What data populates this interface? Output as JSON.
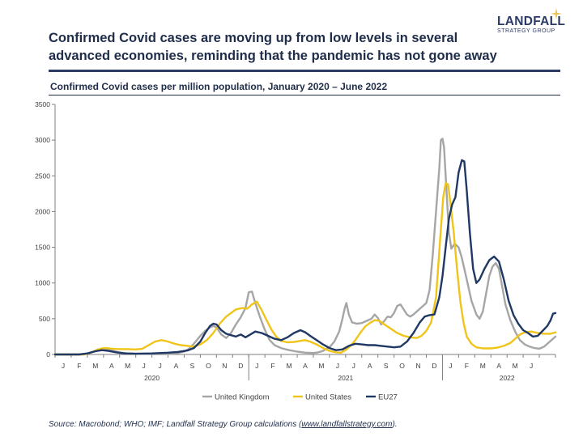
{
  "headline": "Confirmed Covid cases are moving up from low levels in several advanced economies, reminding that the pandemic has not gone away",
  "brand": {
    "name": "LANDFALL",
    "subtitle": "STRATEGY GROUP",
    "star_color": "#e8c25a",
    "color": "#2b3b66"
  },
  "source": {
    "prefix": "Source: Macrobond; WHO; IMF; Landfall Strategy Group calculations (",
    "link": "www.landfallstrategy.com",
    "suffix": ")."
  },
  "chart_data": {
    "type": "line",
    "title": "Confirmed Covid cases per million population, January 2020 – June 2022",
    "xlabel": "",
    "ylabel": "",
    "ylim": [
      0,
      3500
    ],
    "yticks": [
      0,
      500,
      1000,
      1500,
      2000,
      2500,
      3000,
      3500
    ],
    "x_unit": "months since January 2020",
    "xlim": [
      0,
      30
    ],
    "month_labels": [
      "J",
      "F",
      "M",
      "A",
      "M",
      "J",
      "J",
      "A",
      "S",
      "O",
      "N",
      "D",
      "J",
      "F",
      "M",
      "A",
      "M",
      "J",
      "J",
      "A",
      "S",
      "O",
      "N",
      "D",
      "J",
      "F",
      "M",
      "A",
      "M",
      "J"
    ],
    "year_labels": [
      {
        "label": "2020",
        "x": 6.0
      },
      {
        "label": "2021",
        "x": 18.0
      },
      {
        "label": "2022",
        "x": 28.0
      }
    ],
    "grid": false,
    "legend": "bottom",
    "series": [
      {
        "name": "United Kingdom",
        "color": "#a6a6a6",
        "points": [
          [
            0,
            0
          ],
          [
            1.5,
            0
          ],
          [
            2.0,
            10
          ],
          [
            2.5,
            45
          ],
          [
            2.8,
            65
          ],
          [
            3.1,
            70
          ],
          [
            3.5,
            55
          ],
          [
            4.0,
            30
          ],
          [
            4.5,
            15
          ],
          [
            5.0,
            10
          ],
          [
            6.0,
            5
          ],
          [
            7.0,
            5
          ],
          [
            7.5,
            15
          ],
          [
            8.0,
            40
          ],
          [
            8.3,
            80
          ],
          [
            8.6,
            150
          ],
          [
            9.0,
            260
          ],
          [
            9.3,
            330
          ],
          [
            9.6,
            380
          ],
          [
            9.8,
            400
          ],
          [
            10.0,
            380
          ],
          [
            10.3,
            280
          ],
          [
            10.6,
            230
          ],
          [
            10.9,
            300
          ],
          [
            11.2,
            420
          ],
          [
            11.5,
            520
          ],
          [
            11.8,
            650
          ],
          [
            12.0,
            870
          ],
          [
            12.2,
            880
          ],
          [
            12.4,
            720
          ],
          [
            12.7,
            520
          ],
          [
            13.0,
            340
          ],
          [
            13.3,
            200
          ],
          [
            13.6,
            130
          ],
          [
            14.0,
            90
          ],
          [
            14.5,
            60
          ],
          [
            15.0,
            40
          ],
          [
            15.5,
            25
          ],
          [
            16.0,
            20
          ],
          [
            16.3,
            30
          ],
          [
            16.6,
            50
          ],
          [
            17.0,
            100
          ],
          [
            17.3,
            180
          ],
          [
            17.6,
            320
          ],
          [
            17.8,
            500
          ],
          [
            17.95,
            650
          ],
          [
            18.05,
            720
          ],
          [
            18.2,
            560
          ],
          [
            18.4,
            450
          ],
          [
            18.7,
            430
          ],
          [
            19.0,
            440
          ],
          [
            19.3,
            470
          ],
          [
            19.6,
            500
          ],
          [
            19.8,
            560
          ],
          [
            20.0,
            510
          ],
          [
            20.2,
            420
          ],
          [
            20.4,
            470
          ],
          [
            20.6,
            530
          ],
          [
            20.8,
            520
          ],
          [
            21.0,
            580
          ],
          [
            21.2,
            680
          ],
          [
            21.4,
            700
          ],
          [
            21.6,
            630
          ],
          [
            21.8,
            560
          ],
          [
            22.0,
            530
          ],
          [
            22.2,
            560
          ],
          [
            22.5,
            620
          ],
          [
            22.8,
            680
          ],
          [
            23.0,
            720
          ],
          [
            23.2,
            900
          ],
          [
            23.4,
            1400
          ],
          [
            23.6,
            2000
          ],
          [
            23.8,
            2600
          ],
          [
            23.9,
            3000
          ],
          [
            24.0,
            3020
          ],
          [
            24.1,
            2900
          ],
          [
            24.25,
            2300
          ],
          [
            24.4,
            1700
          ],
          [
            24.55,
            1480
          ],
          [
            24.75,
            1550
          ],
          [
            25.0,
            1500
          ],
          [
            25.2,
            1350
          ],
          [
            25.5,
            1050
          ],
          [
            25.8,
            750
          ],
          [
            26.1,
            560
          ],
          [
            26.3,
            500
          ],
          [
            26.5,
            600
          ],
          [
            26.7,
            850
          ],
          [
            26.9,
            1100
          ],
          [
            27.1,
            1230
          ],
          [
            27.3,
            1280
          ],
          [
            27.5,
            1200
          ],
          [
            27.7,
            950
          ],
          [
            27.9,
            700
          ],
          [
            28.2,
            480
          ],
          [
            28.5,
            320
          ],
          [
            28.8,
            200
          ],
          [
            29.1,
            140
          ],
          [
            29.4,
            110
          ],
          [
            29.7,
            90
          ],
          [
            30.0,
            80
          ],
          [
            30.3,
            110
          ],
          [
            30.6,
            170
          ],
          [
            30.9,
            230
          ],
          [
            31.0,
            250
          ]
        ]
      },
      {
        "name": "United States",
        "color": "#f0c419",
        "points": [
          [
            0,
            0
          ],
          [
            1.8,
            0
          ],
          [
            2.2,
            25
          ],
          [
            2.6,
            65
          ],
          [
            2.9,
            85
          ],
          [
            3.2,
            90
          ],
          [
            3.5,
            80
          ],
          [
            4.0,
            75
          ],
          [
            4.5,
            75
          ],
          [
            5.0,
            70
          ],
          [
            5.4,
            80
          ],
          [
            5.8,
            130
          ],
          [
            6.2,
            180
          ],
          [
            6.6,
            200
          ],
          [
            7.0,
            180
          ],
          [
            7.4,
            150
          ],
          [
            7.8,
            130
          ],
          [
            8.2,
            120
          ],
          [
            8.6,
            110
          ],
          [
            9.0,
            140
          ],
          [
            9.4,
            200
          ],
          [
            9.8,
            300
          ],
          [
            10.2,
            430
          ],
          [
            10.6,
            530
          ],
          [
            10.9,
            580
          ],
          [
            11.2,
            630
          ],
          [
            11.6,
            650
          ],
          [
            11.9,
            640
          ],
          [
            12.2,
            700
          ],
          [
            12.5,
            740
          ],
          [
            12.8,
            620
          ],
          [
            13.1,
            480
          ],
          [
            13.4,
            350
          ],
          [
            13.7,
            250
          ],
          [
            14.0,
            190
          ],
          [
            14.4,
            170
          ],
          [
            14.8,
            175
          ],
          [
            15.2,
            190
          ],
          [
            15.5,
            200
          ],
          [
            15.8,
            180
          ],
          [
            16.2,
            140
          ],
          [
            16.6,
            90
          ],
          [
            17.0,
            50
          ],
          [
            17.4,
            30
          ],
          [
            17.7,
            25
          ],
          [
            18.0,
            60
          ],
          [
            18.3,
            120
          ],
          [
            18.6,
            200
          ],
          [
            18.9,
            300
          ],
          [
            19.2,
            390
          ],
          [
            19.5,
            440
          ],
          [
            19.8,
            480
          ],
          [
            20.1,
            470
          ],
          [
            20.4,
            420
          ],
          [
            20.8,
            360
          ],
          [
            21.2,
            300
          ],
          [
            21.6,
            260
          ],
          [
            22.0,
            240
          ],
          [
            22.4,
            230
          ],
          [
            22.7,
            260
          ],
          [
            23.0,
            330
          ],
          [
            23.3,
            450
          ],
          [
            23.6,
            800
          ],
          [
            23.85,
            1600
          ],
          [
            24.05,
            2200
          ],
          [
            24.2,
            2400
          ],
          [
            24.35,
            2380
          ],
          [
            24.5,
            2100
          ],
          [
            24.7,
            1700
          ],
          [
            24.9,
            1200
          ],
          [
            25.1,
            750
          ],
          [
            25.3,
            450
          ],
          [
            25.5,
            250
          ],
          [
            25.8,
            150
          ],
          [
            26.1,
            100
          ],
          [
            26.5,
            85
          ],
          [
            27.0,
            85
          ],
          [
            27.4,
            95
          ],
          [
            27.8,
            120
          ],
          [
            28.2,
            160
          ],
          [
            28.5,
            220
          ],
          [
            28.8,
            280
          ],
          [
            29.1,
            310
          ],
          [
            29.5,
            320
          ],
          [
            29.9,
            300
          ],
          [
            30.3,
            290
          ],
          [
            30.7,
            290
          ],
          [
            31.0,
            310
          ]
        ]
      },
      {
        "name": "EU27",
        "color": "#1f3864",
        "points": [
          [
            0,
            0
          ],
          [
            1.5,
            0
          ],
          [
            2.0,
            15
          ],
          [
            2.5,
            45
          ],
          [
            2.9,
            60
          ],
          [
            3.3,
            50
          ],
          [
            3.8,
            30
          ],
          [
            4.3,
            15
          ],
          [
            5.0,
            10
          ],
          [
            6.0,
            15
          ],
          [
            7.0,
            25
          ],
          [
            7.6,
            35
          ],
          [
            8.2,
            55
          ],
          [
            8.6,
            90
          ],
          [
            9.0,
            180
          ],
          [
            9.3,
            300
          ],
          [
            9.6,
            400
          ],
          [
            9.8,
            430
          ],
          [
            10.0,
            420
          ],
          [
            10.3,
            340
          ],
          [
            10.6,
            290
          ],
          [
            10.9,
            270
          ],
          [
            11.2,
            250
          ],
          [
            11.5,
            280
          ],
          [
            11.8,
            240
          ],
          [
            12.1,
            280
          ],
          [
            12.4,
            320
          ],
          [
            12.8,
            300
          ],
          [
            13.2,
            260
          ],
          [
            13.6,
            220
          ],
          [
            14.0,
            200
          ],
          [
            14.4,
            240
          ],
          [
            14.8,
            300
          ],
          [
            15.2,
            340
          ],
          [
            15.5,
            310
          ],
          [
            15.8,
            260
          ],
          [
            16.2,
            200
          ],
          [
            16.6,
            140
          ],
          [
            17.0,
            90
          ],
          [
            17.4,
            60
          ],
          [
            17.8,
            70
          ],
          [
            18.2,
            120
          ],
          [
            18.6,
            150
          ],
          [
            19.0,
            140
          ],
          [
            19.4,
            130
          ],
          [
            19.8,
            130
          ],
          [
            20.2,
            120
          ],
          [
            20.6,
            110
          ],
          [
            21.0,
            100
          ],
          [
            21.4,
            110
          ],
          [
            21.8,
            180
          ],
          [
            22.2,
            300
          ],
          [
            22.6,
            450
          ],
          [
            22.9,
            530
          ],
          [
            23.2,
            550
          ],
          [
            23.5,
            560
          ],
          [
            23.8,
            800
          ],
          [
            24.0,
            1100
          ],
          [
            24.2,
            1500
          ],
          [
            24.4,
            1900
          ],
          [
            24.6,
            2100
          ],
          [
            24.8,
            2200
          ],
          [
            25.0,
            2550
          ],
          [
            25.2,
            2720
          ],
          [
            25.35,
            2700
          ],
          [
            25.5,
            2300
          ],
          [
            25.7,
            1700
          ],
          [
            25.9,
            1200
          ],
          [
            26.1,
            1000
          ],
          [
            26.3,
            1050
          ],
          [
            26.6,
            1200
          ],
          [
            26.9,
            1320
          ],
          [
            27.2,
            1370
          ],
          [
            27.5,
            1300
          ],
          [
            27.8,
            1050
          ],
          [
            28.1,
            750
          ],
          [
            28.4,
            550
          ],
          [
            28.7,
            430
          ],
          [
            29.0,
            340
          ],
          [
            29.3,
            300
          ],
          [
            29.6,
            250
          ],
          [
            29.9,
            260
          ],
          [
            30.2,
            330
          ],
          [
            30.5,
            400
          ],
          [
            30.7,
            480
          ],
          [
            30.85,
            570
          ],
          [
            31.0,
            580
          ]
        ]
      }
    ]
  }
}
